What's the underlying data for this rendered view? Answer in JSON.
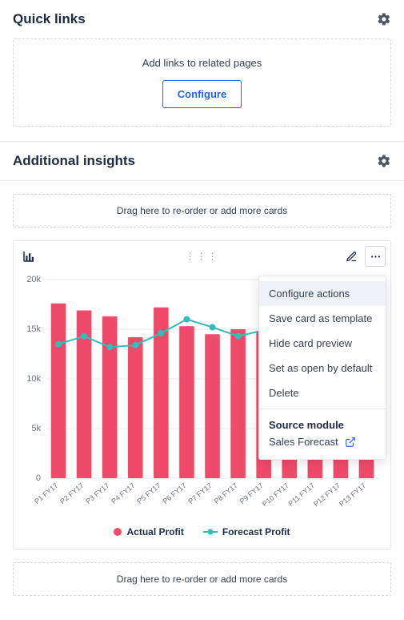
{
  "quick_links": {
    "title": "Quick links",
    "empty_text": "Add links to related pages",
    "configure_label": "Configure"
  },
  "insights": {
    "title": "Additional insights",
    "drop_hint": "Drag here to re-order or add more cards"
  },
  "card_menu": {
    "items": [
      {
        "label": "Configure actions",
        "highlight": true
      },
      {
        "label": "Save card as template",
        "highlight": false
      },
      {
        "label": "Hide card preview",
        "highlight": false
      },
      {
        "label": "Set as open by default",
        "highlight": false
      },
      {
        "label": "Delete",
        "highlight": false
      }
    ],
    "source_heading": "Source module",
    "source_link": "Sales Forecast"
  },
  "chart": {
    "type": "bar+line",
    "background_color": "#ffffff",
    "grid_color": "#e5e7eb",
    "bar_color": "#f04a6b",
    "line_color": "#2fbfb6",
    "marker_color": "#2fbfb6",
    "marker_size": 4,
    "line_width": 2,
    "bar_width": 0.58,
    "yaxis": {
      "min": 0,
      "max": 20000,
      "ticks": [
        0,
        5000,
        10000,
        15000,
        20000
      ],
      "tick_labels": [
        "0",
        "5k",
        "10k",
        "15k",
        "20k"
      ],
      "label_fontsize": 11,
      "label_color": "#6b7280"
    },
    "categories": [
      "P1 FY17",
      "P2 FY17",
      "P3 FY17",
      "P4 FY17",
      "P5 FY17",
      "P6 FY17",
      "P7 FY17",
      "P8 FY17",
      "P9 FY17",
      "P10 FY17",
      "P11 FY17",
      "P12 FY17",
      "P13 FY17"
    ],
    "series": [
      {
        "name": "Actual Profit",
        "type": "bar",
        "color": "#f04a6b",
        "values": [
          17600,
          16900,
          16300,
          14200,
          17200,
          15300,
          14500,
          15000,
          14800,
          14300,
          14100,
          14000,
          13800
        ]
      },
      {
        "name": "Forecast Profit",
        "type": "line",
        "color": "#2fbfb6",
        "values": [
          13500,
          14300,
          13200,
          13400,
          14600,
          16000,
          15200,
          14300,
          14900,
          14600,
          14400,
          14200,
          14000
        ]
      }
    ],
    "legend": {
      "actual_label": "Actual Profit",
      "forecast_label": "Forecast Profit"
    },
    "x_label_fontsize": 9,
    "x_label_color": "#6b7280"
  }
}
